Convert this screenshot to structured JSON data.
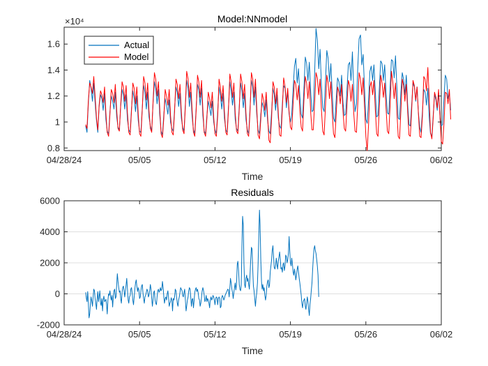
{
  "colors": {
    "actual": "#0072BD",
    "model": "#FF0000",
    "axis": "#262626",
    "grid": "#DFDFDF",
    "background": "#FFFFFF"
  },
  "chart_data": [
    {
      "type": "line",
      "title": "Model:NNmodel",
      "xlabel": "Time",
      "ylabel": "",
      "exponent_label": "×10⁴",
      "x_tick_labels": [
        "04/28/24",
        "05/05",
        "05/12",
        "05/19",
        "05/26",
        "06/02"
      ],
      "x_ticks_days": [
        0,
        7,
        14,
        21,
        28,
        35
      ],
      "xlim_days": [
        0,
        35
      ],
      "ylim": [
        7800,
        17300
      ],
      "y_ticks": [
        8000,
        10000,
        12000,
        14000,
        16000
      ],
      "y_tick_labels": [
        "0.8",
        "1",
        "1.2",
        "1.4",
        "1.6"
      ],
      "grid": false,
      "legend": {
        "location": "top-left",
        "entries": [
          "Actual",
          "Model"
        ]
      },
      "x_start_day": 2.0,
      "x_step_hours": 3,
      "series": [
        {
          "name": "Actual",
          "values": [
            9700,
            9200,
            11500,
            13200,
            12600,
            11600,
            13000,
            11500,
            10100,
            9200,
            11200,
            12100,
            11800,
            10900,
            12200,
            10200,
            9300,
            9100,
            10800,
            12000,
            11600,
            11000,
            12300,
            10400,
            9600,
            9400,
            11200,
            12500,
            12100,
            11000,
            12100,
            10200,
            9400,
            9200,
            11000,
            12400,
            11800,
            10800,
            12000,
            10100,
            9300,
            9200,
            11100,
            12800,
            12300,
            11000,
            12300,
            10400,
            9700,
            9300,
            11400,
            13100,
            12600,
            11400,
            12500,
            10500,
            9300,
            9000,
            10600,
            11800,
            11300,
            10600,
            11700,
            10000,
            9500,
            9300,
            11000,
            12700,
            12300,
            11200,
            12200,
            10300,
            9600,
            9300,
            11400,
            13200,
            12600,
            11200,
            12300,
            10400,
            9400,
            9100,
            11100,
            12900,
            12500,
            11300,
            12600,
            10500,
            9300,
            9100,
            10500,
            11600,
            11100,
            10500,
            11600,
            10000,
            9400,
            9100,
            10800,
            12700,
            12100,
            11000,
            12200,
            10300,
            9400,
            9200,
            11100,
            13100,
            12400,
            11300,
            12300,
            10200,
            9500,
            9300,
            11200,
            13000,
            12400,
            11100,
            12200,
            10200,
            9400,
            9100,
            11000,
            13200,
            12700,
            11300,
            12700,
            10600,
            9400,
            9100,
            10600,
            11500,
            11100,
            10400,
            11700,
            10100,
            9300,
            9100,
            10800,
            12600,
            12100,
            10900,
            12100,
            10300,
            9700,
            9500,
            11400,
            12800,
            12600,
            11100,
            12400,
            10600,
            10000,
            10600,
            12600,
            14300,
            14900,
            13000,
            14100,
            12000,
            10600,
            10300,
            12500,
            15000,
            14500,
            13200,
            14600,
            12400,
            10800,
            10900,
            13900,
            17200,
            16300,
            14100,
            15600,
            12900,
            11100,
            10800,
            13100,
            15500,
            14900,
            13100,
            14500,
            12300,
            10300,
            10000,
            11800,
            13400,
            13100,
            12000,
            13600,
            11500,
            10500,
            10600,
            12600,
            14400,
            14600,
            13200,
            15400,
            12500,
            10800,
            11400,
            14200,
            16400,
            16700,
            14400,
            15200,
            12600,
            10200,
            9900,
            11700,
            13900,
            14300,
            13200,
            14400,
            12400,
            10400,
            10500,
            12600,
            14700,
            14500,
            13200,
            14400,
            12200,
            10700,
            10600,
            12700,
            14800,
            14700,
            13400,
            15100,
            12800,
            10300,
            10200,
            12300,
            13800,
            13300,
            12100,
            13600,
            11400,
            9800,
            9700,
            11300,
            13000,
            12700,
            11600,
            12700,
            10700,
            9600,
            9200,
            10800,
            12500,
            12300,
            11300,
            12600,
            10400,
            9100,
            8900,
            10500,
            12100,
            11700,
            10900,
            12300,
            10300,
            9700,
            9800,
            11900,
            13600,
            13300,
            11800,
            12200,
            10900
          ]
        },
        {
          "name": "Model",
          "values": [
            9800,
            9500,
            11700,
            13000,
            12700,
            12200,
            13500,
            12000,
            10300,
            9400,
            11300,
            12400,
            12100,
            11500,
            12700,
            10700,
            9200,
            8900,
            10600,
            12500,
            12200,
            11500,
            12900,
            10900,
            9500,
            9300,
            11300,
            13100,
            12700,
            11600,
            12800,
            10700,
            9200,
            9000,
            10800,
            13000,
            12600,
            11400,
            12700,
            10600,
            9100,
            8900,
            11000,
            13500,
            13000,
            11700,
            13000,
            10900,
            9500,
            9200,
            11500,
            13800,
            13300,
            12000,
            13100,
            11000,
            9100,
            8800,
            10300,
            12500,
            12000,
            11300,
            12500,
            10500,
            9200,
            9000,
            10800,
            13300,
            12900,
            11800,
            12900,
            10800,
            9400,
            9100,
            11200,
            13900,
            13300,
            11900,
            13000,
            10900,
            9200,
            8900,
            10900,
            13600,
            13100,
            11900,
            13200,
            11000,
            9200,
            8900,
            10300,
            12300,
            11800,
            11100,
            12300,
            10400,
            9100,
            8900,
            10500,
            13300,
            12700,
            11600,
            12800,
            10800,
            9200,
            9000,
            10900,
            13700,
            13100,
            11900,
            13000,
            10700,
            9300,
            9100,
            11000,
            13700,
            13100,
            11800,
            12900,
            10700,
            9100,
            8900,
            10700,
            13800,
            13300,
            11900,
            13300,
            11100,
            9000,
            8700,
            10200,
            12200,
            11700,
            10900,
            12300,
            10500,
            8600,
            8400,
            10300,
            13100,
            12700,
            11400,
            12600,
            10700,
            9000,
            8900,
            11000,
            13400,
            12700,
            11500,
            12600,
            10800,
            9600,
            9400,
            11500,
            13200,
            12900,
            11700,
            12800,
            10900,
            9600,
            9300,
            11600,
            13500,
            13000,
            11800,
            13100,
            10800,
            9400,
            9400,
            11600,
            13800,
            13400,
            12100,
            13300,
            11000,
            9300,
            9000,
            11100,
            13600,
            13000,
            11800,
            13100,
            10800,
            9100,
            8800,
            10600,
            12700,
            12300,
            11400,
            12900,
            10800,
            9500,
            9300,
            11400,
            13200,
            12800,
            11600,
            12900,
            10700,
            9300,
            9200,
            11400,
            13800,
            13300,
            12100,
            13400,
            11200,
            8900,
            7800,
            9800,
            12700,
            13100,
            12100,
            13200,
            11000,
            9100,
            8900,
            11100,
            13600,
            13000,
            11900,
            13000,
            11000,
            9300,
            9100,
            11300,
            13900,
            13100,
            11800,
            13000,
            10900,
            8900,
            8700,
            10800,
            13300,
            12800,
            11600,
            12900,
            10900,
            9000,
            8900,
            10900,
            13200,
            12800,
            11700,
            12700,
            10600,
            8900,
            8800,
            10400,
            13500,
            13300,
            12400,
            14200,
            11900,
            9200,
            8700,
            10300,
            12300,
            11900,
            11100,
            12500,
            10400,
            8500,
            8300,
            9900,
            12300,
            12200,
            11400,
            12500,
            10200
          ]
        }
      ]
    },
    {
      "type": "line",
      "title": "Residuals",
      "xlabel": "Time",
      "ylabel": "",
      "x_tick_labels": [
        "04/28/24",
        "05/05",
        "05/12",
        "05/19",
        "05/26",
        "06/02"
      ],
      "x_ticks_days": [
        0,
        7,
        14,
        21,
        28,
        35
      ],
      "xlim_days": [
        0,
        35
      ],
      "ylim": [
        -2000,
        6000
      ],
      "y_ticks": [
        -2000,
        0,
        2000,
        4000,
        6000
      ],
      "y_tick_labels": [
        "-2000",
        "0",
        "2000",
        "4000",
        "6000"
      ],
      "grid": "horizontal",
      "x_start_day": 2.0,
      "x_step_hours": 1.5,
      "series": [
        {
          "name": "Residuals",
          "values": [
            100,
            -300,
            -500,
            150,
            -700,
            -1550,
            -1300,
            -600,
            -200,
            -450,
            -800,
            -250,
            300,
            200,
            -300,
            -600,
            -1000,
            -350,
            150,
            -500,
            -200,
            200,
            -600,
            -750,
            -300,
            -1100,
            -400,
            -150,
            -500,
            -450,
            -350,
            -700,
            -1300,
            -400,
            0,
            -100,
            200,
            -200,
            -400,
            -100,
            -850,
            -200,
            200,
            300,
            -300,
            -200,
            600,
            1300,
            800,
            400,
            100,
            200,
            -300,
            -600,
            100,
            400,
            500,
            200,
            -200,
            200,
            600,
            1000,
            300,
            -400,
            -600,
            -200,
            -100,
            300,
            400,
            50,
            -400,
            -700,
            -200,
            300,
            700,
            900,
            500,
            150,
            400,
            250,
            -300,
            -200,
            200,
            500,
            600,
            100,
            -300,
            -600,
            -200,
            -100,
            100,
            300,
            200,
            -200,
            -100,
            200,
            600,
            300,
            -300,
            -800,
            -400,
            100,
            200,
            -400,
            -600,
            -700,
            -200,
            200,
            300,
            100,
            200,
            400,
            200,
            300,
            800,
            400,
            -200,
            -600,
            -300,
            -200,
            -400,
            0,
            200,
            -200,
            -800,
            -600,
            -500,
            -250,
            -400,
            -1100,
            -300,
            -400,
            -200,
            300,
            200,
            -200,
            -600,
            -800,
            -400,
            -200,
            100,
            400,
            300,
            200,
            -100,
            -200,
            100,
            300,
            -400,
            -1100,
            -800,
            -400,
            -200,
            200,
            400,
            300,
            -200,
            -800,
            -350,
            -300,
            -900,
            -400,
            100,
            300,
            400,
            150,
            300,
            100,
            -300,
            -400,
            -800,
            -600,
            -200,
            200,
            400,
            200,
            -100,
            -500,
            -400,
            -100,
            -500,
            -300,
            -400,
            -600,
            -900,
            -400,
            -200,
            -400,
            -300,
            -100,
            -200,
            -400,
            -700,
            -300,
            -200,
            -250,
            -700,
            -300,
            -200,
            -300,
            -900,
            -800,
            -250,
            -100,
            -200,
            -400,
            -300,
            -100,
            0,
            100,
            200,
            300,
            250,
            -200,
            400,
            1000,
            700,
            300,
            100,
            -300,
            100,
            400,
            700,
            250,
            600,
            1900,
            2100,
            1500,
            600,
            300,
            200,
            600,
            3000,
            5000,
            4400,
            2000,
            600,
            400,
            1000,
            1200,
            800,
            1000,
            600,
            300,
            1200,
            2200,
            3000,
            2900,
            1600,
            500,
            200,
            -300,
            -800,
            -300,
            100,
            700,
            1900,
            3700,
            5400,
            4400,
            2200,
            800,
            300,
            600,
            200,
            400,
            -100,
            -400,
            -100,
            500,
            800,
            900,
            400,
            600,
            1400,
            1800,
            2200,
            2800,
            3100,
            2400,
            1700,
            1600,
            1800,
            2300,
            1900,
            1600,
            2100,
            2400,
            2700,
            2200,
            1600,
            1700,
            1400,
            1900,
            2000,
            1500,
            1800,
            2500,
            2400,
            2000,
            2200,
            2600,
            3700,
            2800,
            2000,
            1800,
            2300,
            1900,
            1400,
            1200,
            1600,
            1300,
            900,
            1200,
            1600,
            1800,
            1400,
            1000,
            700,
            300,
            -100,
            -600,
            -900,
            -500,
            -400,
            -300,
            -800,
            -1000,
            -600,
            -200,
            -500,
            -1000,
            -1400,
            -700,
            -300,
            200,
            700,
            1600,
            2300,
            2900,
            3100,
            2800,
            2600,
            2200,
            1800,
            1200,
            -200
          ]
        }
      ]
    }
  ]
}
